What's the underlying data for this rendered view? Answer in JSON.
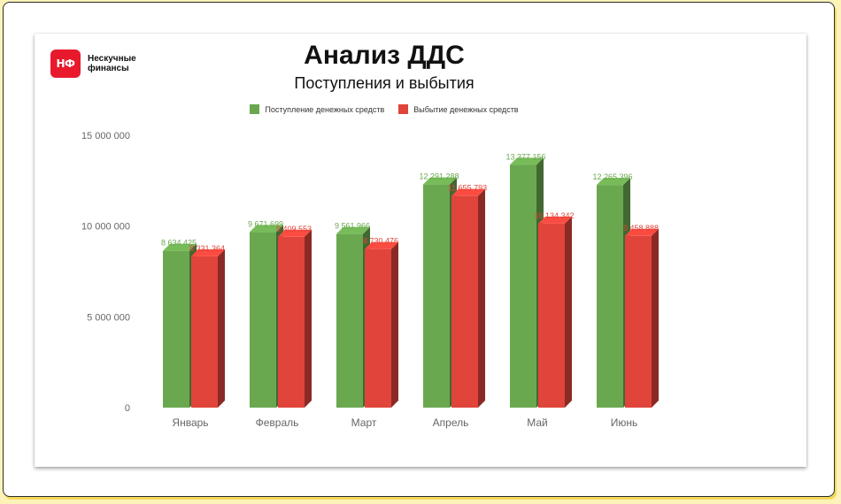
{
  "logo": {
    "badge": "НФ",
    "line1": "Нескучные",
    "line2": "финансы",
    "color": "#e8192c"
  },
  "chart_data": {
    "type": "bar",
    "title": "Анализ ДДС",
    "subtitle": "Поступления и выбытия",
    "categories": [
      "Январь",
      "Февраль",
      "Март",
      "Апрель",
      "Май",
      "Июнь"
    ],
    "series": [
      {
        "name": "Поступление денежных средств",
        "color": "#6aa84f",
        "values": [
          8634425,
          9671699,
          9561966,
          12291288,
          13377156,
          12265396
        ],
        "labels": [
          "8 634 425",
          "9 671 699",
          "9 561 966",
          "12 291 288",
          "13 377 156",
          "12 265 396"
        ]
      },
      {
        "name": "Выбытие денежных средств",
        "color": "#e0443a",
        "values": [
          8331364,
          9409553,
          8730476,
          11655793,
          10134342,
          9458888
        ],
        "labels": [
          "8 331 364",
          "9 409 553",
          "8 730 476",
          "11 655 793",
          "10 134 342",
          "9 458 888"
        ]
      }
    ],
    "ylim": [
      0,
      15000000
    ],
    "yticks": [
      0,
      5000000,
      10000000,
      15000000
    ],
    "ytick_labels": [
      "0",
      "5 000 000",
      "10 000 000",
      "15 000 000"
    ],
    "legend_position": "top",
    "grid": false,
    "style": "3d"
  }
}
